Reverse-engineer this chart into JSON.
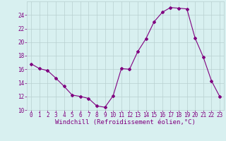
{
  "x": [
    0,
    1,
    2,
    3,
    4,
    5,
    6,
    7,
    8,
    9,
    10,
    11,
    12,
    13,
    14,
    15,
    16,
    17,
    18,
    19,
    20,
    21,
    22,
    23
  ],
  "y": [
    16.8,
    16.1,
    15.8,
    14.7,
    13.5,
    12.2,
    12.0,
    11.7,
    10.6,
    10.4,
    12.1,
    16.1,
    16.0,
    18.6,
    20.5,
    23.0,
    24.4,
    25.1,
    25.0,
    24.9,
    20.6,
    17.8,
    14.3,
    12.0
  ],
  "line_color": "#800080",
  "marker": "D",
  "marker_size": 2.0,
  "bg_color": "#d8f0f0",
  "grid_color": "#b8d0d0",
  "xlabel": "Windchill (Refroidissement éolien,°C)",
  "xlabel_color": "#800080",
  "xlabel_fontsize": 6.5,
  "tick_color": "#800080",
  "tick_fontsize": 5.5,
  "ylim": [
    10,
    26
  ],
  "yticks": [
    10,
    12,
    14,
    16,
    18,
    20,
    22,
    24
  ],
  "xlim": [
    -0.5,
    23.5
  ],
  "xticks": [
    0,
    1,
    2,
    3,
    4,
    5,
    6,
    7,
    8,
    9,
    10,
    11,
    12,
    13,
    14,
    15,
    16,
    17,
    18,
    19,
    20,
    21,
    22,
    23
  ]
}
